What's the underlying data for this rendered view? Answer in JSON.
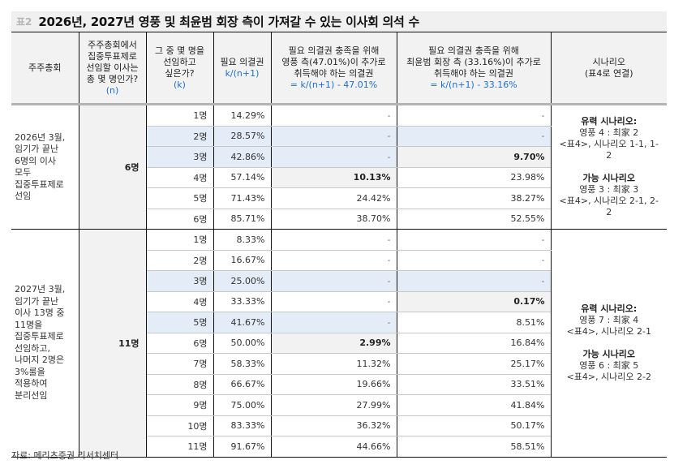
{
  "title_bar": {
    "tag": "표2",
    "title": "2026년, 2027년 영풍 및 최윤범 회장 측이 가져갈 수 있는 이사회 의석 수"
  },
  "header": {
    "col1": "주주총회",
    "col2_lines": [
      "주주총회에서",
      "집중투표제로",
      "선임할 이사는",
      "총 몇 명인가?"
    ],
    "col2_var": "(n)",
    "col3_lines": [
      "그 중 몇 명을",
      "선임하고",
      "싶은가?"
    ],
    "col3_var": "(k)",
    "col4_line": "필요 의결권",
    "col4_formula": "k/(n+1)",
    "col5_lines": [
      "필요 의결권 충족을 위해",
      "영풍 측(47.01%)이 추가로",
      "취득해야 하는 의결권"
    ],
    "col5_formula": "= k/(n+1) - 47.01%",
    "col6_lines": [
      "필요 의결권 충족을 위해",
      "최윤범 회장 측 (33.16%)이 추가로",
      "취득해야 하는 의결권"
    ],
    "col6_formula": "= k/(n+1) - 33.16%",
    "col7_lines": [
      "시나리오",
      "(표4로 연결)"
    ]
  },
  "blocks": [
    {
      "desc_lines": [
        "2026년 3월,",
        "임기가 끝난",
        "6명의 이사",
        "모두",
        "집중투표제로",
        "선임"
      ],
      "n": "6명",
      "rows": [
        {
          "k": "1명",
          "pct": "14.29%",
          "yp": "-",
          "choi": "-",
          "hl": "",
          "yp_style": "",
          "choi_style": ""
        },
        {
          "k": "2명",
          "pct": "28.57%",
          "yp": "-",
          "choi": "-",
          "hl": "blue",
          "yp_style": "blue",
          "choi_style": "blue"
        },
        {
          "k": "3명",
          "pct": "42.86%",
          "yp": "-",
          "choi": "9.70%",
          "hl": "blue",
          "yp_style": "blue",
          "choi_style": "gray"
        },
        {
          "k": "4명",
          "pct": "57.14%",
          "yp": "10.13%",
          "choi": "23.98%",
          "hl": "",
          "yp_style": "gray",
          "choi_style": ""
        },
        {
          "k": "5명",
          "pct": "71.43%",
          "yp": "24.42%",
          "choi": "38.27%",
          "hl": "",
          "yp_style": "",
          "choi_style": ""
        },
        {
          "k": "6명",
          "pct": "85.71%",
          "yp": "38.70%",
          "choi": "52.55%",
          "hl": "",
          "yp_style": "",
          "choi_style": ""
        }
      ],
      "scenario": {
        "likely_title": "유력 시나리오:",
        "likely_seats": "영풍 4 : 최家 2",
        "likely_ref": "<표4>, 시나리오 1-1, 1-2",
        "possible_title": "가능 시나리오",
        "possible_seats": "영풍 3 : 최家 3",
        "possible_ref": "<표4>, 시나리오 2-1, 2-2"
      }
    },
    {
      "desc_lines": [
        "2027년 3월,",
        "임기가 끝난",
        "이사 13명 중",
        "11명을",
        "집중투표제로",
        "선임하고,",
        "나머지 2명은",
        "3%룰을",
        "적용하여",
        "분리선임"
      ],
      "n": "11명",
      "rows": [
        {
          "k": "1명",
          "pct": "8.33%",
          "yp": "-",
          "choi": "-",
          "hl": "",
          "yp_style": "",
          "choi_style": ""
        },
        {
          "k": "2명",
          "pct": "16.67%",
          "yp": "-",
          "choi": "-",
          "hl": "",
          "yp_style": "",
          "choi_style": ""
        },
        {
          "k": "3명",
          "pct": "25.00%",
          "yp": "-",
          "choi": "-",
          "hl": "blue",
          "yp_style": "blue",
          "choi_style": "blue"
        },
        {
          "k": "4명",
          "pct": "33.33%",
          "yp": "-",
          "choi": "0.17%",
          "hl": "",
          "yp_style": "",
          "choi_style": "gray"
        },
        {
          "k": "5명",
          "pct": "41.67%",
          "yp": "-",
          "choi": "8.51%",
          "hl": "blue",
          "yp_style": "blue",
          "choi_style": ""
        },
        {
          "k": "6명",
          "pct": "50.00%",
          "yp": "2.99%",
          "choi": "16.84%",
          "hl": "",
          "yp_style": "gray",
          "choi_style": ""
        },
        {
          "k": "7명",
          "pct": "58.33%",
          "yp": "11.32%",
          "choi": "25.17%",
          "hl": "",
          "yp_style": "",
          "choi_style": ""
        },
        {
          "k": "8명",
          "pct": "66.67%",
          "yp": "19.66%",
          "choi": "33.51%",
          "hl": "",
          "yp_style": "",
          "choi_style": ""
        },
        {
          "k": "9명",
          "pct": "75.00%",
          "yp": "27.99%",
          "choi": "41.84%",
          "hl": "",
          "yp_style": "",
          "choi_style": ""
        },
        {
          "k": "10명",
          "pct": "83.33%",
          "yp": "36.32%",
          "choi": "50.17%",
          "hl": "",
          "yp_style": "",
          "choi_style": ""
        },
        {
          "k": "11명",
          "pct": "91.67%",
          "yp": "44.66%",
          "choi": "58.51%",
          "hl": "",
          "yp_style": "",
          "choi_style": ""
        }
      ],
      "scenario": {
        "likely_title": "유력 시나리오:",
        "likely_seats": "영풍 7 : 최家 4",
        "likely_ref": "<표4>, 시나리오 2-1",
        "possible_title": "가능 시나리오",
        "possible_seats": "영풍 6 : 최家 5",
        "possible_ref": "<표4>, 시나리오 2-2"
      }
    }
  ],
  "colors": {
    "header_bg": "#f2f2f2",
    "highlight_blue": "#e4ecf7",
    "highlight_gray": "#f2f2f2",
    "formula_blue": "#1f6fd1"
  },
  "source": "자료: 메리츠증권 리서치센터"
}
